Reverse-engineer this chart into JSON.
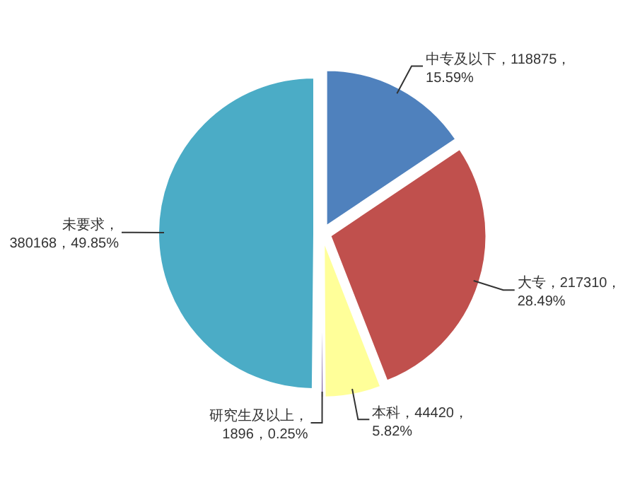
{
  "chart_data": {
    "type": "pie",
    "categories": [
      "中专及以下",
      "大专",
      "本科",
      "研究生及以上",
      "未要求"
    ],
    "values": [
      118875,
      217310,
      44420,
      1896,
      380168
    ],
    "value_labels": [
      "，118875，15.59%",
      "，217310，28.49%",
      "，44420，5.82%",
      "，1896，0.25%",
      "，380168，49.85%"
    ],
    "colors": [
      "#4f81bd",
      "#c0504d",
      "#ffff99",
      "#8064a2",
      "#4bacc6"
    ]
  }
}
